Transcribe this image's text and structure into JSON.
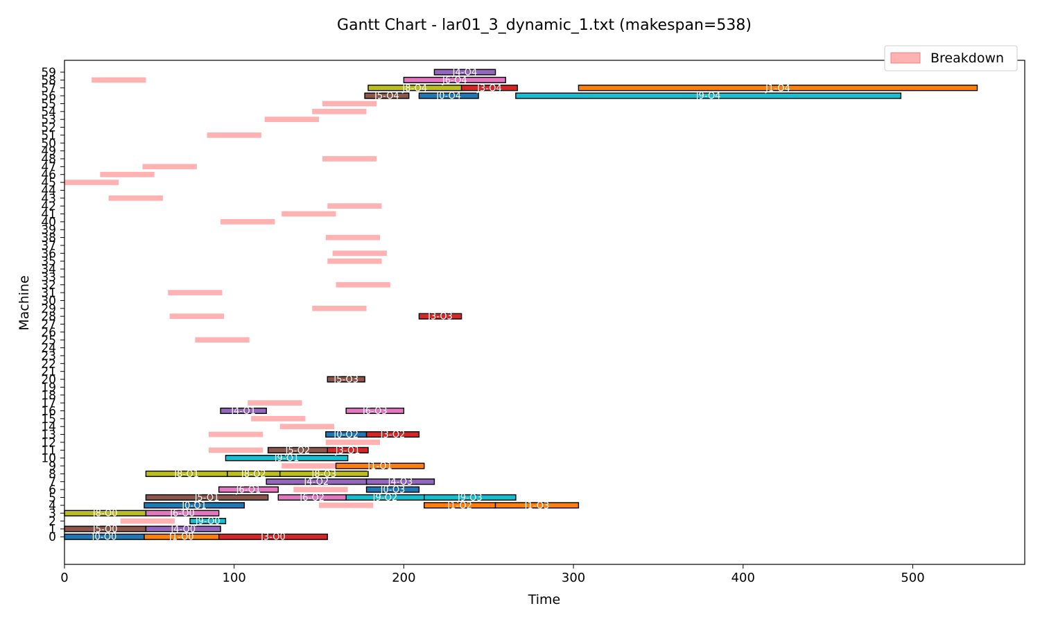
{
  "chart_data": {
    "type": "gantt",
    "title": "Gantt Chart - lar01_3_dynamic_1.txt (makespan=538)",
    "xlabel": "Time",
    "ylabel": "Machine",
    "xlim": [
      0,
      566
    ],
    "ylim": [
      -3.5,
      60.5
    ],
    "xticks": [
      0,
      100,
      200,
      300,
      400,
      500
    ],
    "yticks": [
      0,
      1,
      2,
      3,
      4,
      5,
      6,
      7,
      8,
      9,
      10,
      11,
      12,
      13,
      14,
      15,
      16,
      17,
      18,
      19,
      20,
      21,
      22,
      23,
      24,
      25,
      26,
      27,
      28,
      29,
      30,
      31,
      32,
      33,
      34,
      35,
      36,
      37,
      38,
      39,
      40,
      41,
      42,
      43,
      44,
      45,
      46,
      47,
      48,
      49,
      50,
      51,
      52,
      53,
      54,
      55,
      56,
      57,
      58,
      59
    ],
    "grid": false,
    "legend": {
      "position": "top-right",
      "entries": [
        {
          "name": "Breakdown",
          "color": "#ffb2b2"
        }
      ]
    },
    "colors": {
      "J0": "#1f77b4",
      "J1": "#ff7f0e",
      "J3": "#d62728",
      "J4": "#9467bd",
      "J5": "#8c564b",
      "J6": "#e377c2",
      "J8": "#bcbd22",
      "J9": "#17becf",
      "breakdown": "#ffb2b2"
    },
    "operations": [
      {
        "machine": 0,
        "start": 0,
        "end": 47,
        "job": "J0",
        "label": "J0-O0"
      },
      {
        "machine": 0,
        "start": 47,
        "end": 91,
        "job": "J1",
        "label": "J1-O0"
      },
      {
        "machine": 0,
        "start": 91,
        "end": 155,
        "job": "J3",
        "label": "J3-O0"
      },
      {
        "machine": 1,
        "start": 0,
        "end": 48,
        "job": "J5",
        "label": "J5-O0"
      },
      {
        "machine": 1,
        "start": 48,
        "end": 92,
        "job": "J4",
        "label": "J4-O0"
      },
      {
        "machine": 2,
        "start": 74,
        "end": 95,
        "job": "J9",
        "label": "J9-O0"
      },
      {
        "machine": 3,
        "start": 0,
        "end": 48,
        "job": "J8",
        "label": "J8-O0"
      },
      {
        "machine": 3,
        "start": 48,
        "end": 91,
        "job": "J6",
        "label": "J6-O0"
      },
      {
        "machine": 4,
        "start": 47,
        "end": 106,
        "job": "J0",
        "label": "J0-O1"
      },
      {
        "machine": 4,
        "start": 212,
        "end": 254,
        "job": "J1",
        "label": "J1-O2"
      },
      {
        "machine": 4,
        "start": 254,
        "end": 303,
        "job": "J1",
        "label": "J1-O3"
      },
      {
        "machine": 5,
        "start": 48,
        "end": 120,
        "job": "J5",
        "label": "J5-O1"
      },
      {
        "machine": 5,
        "start": 126,
        "end": 166,
        "job": "J6",
        "label": "J6-O2"
      },
      {
        "machine": 5,
        "start": 166,
        "end": 212,
        "job": "J9",
        "label": "J9-O2"
      },
      {
        "machine": 5,
        "start": 212,
        "end": 266,
        "job": "J9",
        "label": "J9-O3"
      },
      {
        "machine": 6,
        "start": 91,
        "end": 126,
        "job": "J6",
        "label": "J6-O1"
      },
      {
        "machine": 6,
        "start": 178,
        "end": 209,
        "job": "J0",
        "label": "J0-O3"
      },
      {
        "machine": 7,
        "start": 119,
        "end": 178,
        "job": "J4",
        "label": "J4-O2"
      },
      {
        "machine": 7,
        "start": 178,
        "end": 218,
        "job": "J4",
        "label": "J4-O3"
      },
      {
        "machine": 8,
        "start": 48,
        "end": 96,
        "job": "J8",
        "label": "J8-O1"
      },
      {
        "machine": 8,
        "start": 96,
        "end": 127,
        "job": "J8",
        "label": "J8-O2"
      },
      {
        "machine": 8,
        "start": 127,
        "end": 179,
        "job": "J8",
        "label": "J8-O3"
      },
      {
        "machine": 9,
        "start": 160,
        "end": 212,
        "job": "J1",
        "label": "J1-O1"
      },
      {
        "machine": 10,
        "start": 95,
        "end": 167,
        "job": "J9",
        "label": "J9-O1"
      },
      {
        "machine": 11,
        "start": 120,
        "end": 155,
        "job": "J5",
        "label": "J5-O2"
      },
      {
        "machine": 11,
        "start": 155,
        "end": 179,
        "job": "J3",
        "label": "J3-O1"
      },
      {
        "machine": 13,
        "start": 154,
        "end": 178,
        "job": "J0",
        "label": "J0-O2"
      },
      {
        "machine": 13,
        "start": 178,
        "end": 209,
        "job": "J3",
        "label": "J3-O2"
      },
      {
        "machine": 16,
        "start": 92,
        "end": 119,
        "job": "J4",
        "label": "J4-O1"
      },
      {
        "machine": 16,
        "start": 166,
        "end": 200,
        "job": "J6",
        "label": "J6-O3"
      },
      {
        "machine": 20,
        "start": 155,
        "end": 177,
        "job": "J5",
        "label": "J5-O3"
      },
      {
        "machine": 28,
        "start": 209,
        "end": 234,
        "job": "J3",
        "label": "J3-O3"
      },
      {
        "machine": 56,
        "start": 177,
        "end": 203,
        "job": "J5",
        "label": "J5-O4"
      },
      {
        "machine": 56,
        "start": 209,
        "end": 244,
        "job": "J0",
        "label": "J0-O4"
      },
      {
        "machine": 56,
        "start": 266,
        "end": 493,
        "job": "J9",
        "label": "J9-O4"
      },
      {
        "machine": 57,
        "start": 179,
        "end": 234,
        "job": "J8",
        "label": "J8-O4"
      },
      {
        "machine": 57,
        "start": 234,
        "end": 267,
        "job": "J3",
        "label": "J3-O4"
      },
      {
        "machine": 57,
        "start": 303,
        "end": 538,
        "job": "J1",
        "label": "J1-O4"
      },
      {
        "machine": 58,
        "start": 200,
        "end": 260,
        "job": "J6",
        "label": "J6-O4"
      },
      {
        "machine": 59,
        "start": 218,
        "end": 254,
        "job": "J4",
        "label": "J4-O4"
      }
    ],
    "breakdowns": [
      {
        "machine": 2,
        "start": 33,
        "end": 65
      },
      {
        "machine": 4,
        "start": 150,
        "end": 182
      },
      {
        "machine": 6,
        "start": 135,
        "end": 167
      },
      {
        "machine": 9,
        "start": 128,
        "end": 160
      },
      {
        "machine": 11,
        "start": 85,
        "end": 117
      },
      {
        "machine": 12,
        "start": 154,
        "end": 186
      },
      {
        "machine": 13,
        "start": 85,
        "end": 117
      },
      {
        "machine": 14,
        "start": 127,
        "end": 159
      },
      {
        "machine": 15,
        "start": 110,
        "end": 142
      },
      {
        "machine": 17,
        "start": 108,
        "end": 140
      },
      {
        "machine": 25,
        "start": 77,
        "end": 109
      },
      {
        "machine": 28,
        "start": 62,
        "end": 94
      },
      {
        "machine": 29,
        "start": 146,
        "end": 178
      },
      {
        "machine": 31,
        "start": 61,
        "end": 93
      },
      {
        "machine": 32,
        "start": 160,
        "end": 192
      },
      {
        "machine": 35,
        "start": 155,
        "end": 187
      },
      {
        "machine": 36,
        "start": 158,
        "end": 190
      },
      {
        "machine": 38,
        "start": 154,
        "end": 186
      },
      {
        "machine": 40,
        "start": 92,
        "end": 124
      },
      {
        "machine": 41,
        "start": 128,
        "end": 160
      },
      {
        "machine": 42,
        "start": 155,
        "end": 187
      },
      {
        "machine": 43,
        "start": 26,
        "end": 58
      },
      {
        "machine": 45,
        "start": 0,
        "end": 32
      },
      {
        "machine": 46,
        "start": 21,
        "end": 53
      },
      {
        "machine": 47,
        "start": 46,
        "end": 78
      },
      {
        "machine": 48,
        "start": 152,
        "end": 184
      },
      {
        "machine": 51,
        "start": 84,
        "end": 116
      },
      {
        "machine": 53,
        "start": 118,
        "end": 150
      },
      {
        "machine": 54,
        "start": 146,
        "end": 178
      },
      {
        "machine": 55,
        "start": 152,
        "end": 184
      },
      {
        "machine": 58,
        "start": 16,
        "end": 48
      }
    ]
  }
}
